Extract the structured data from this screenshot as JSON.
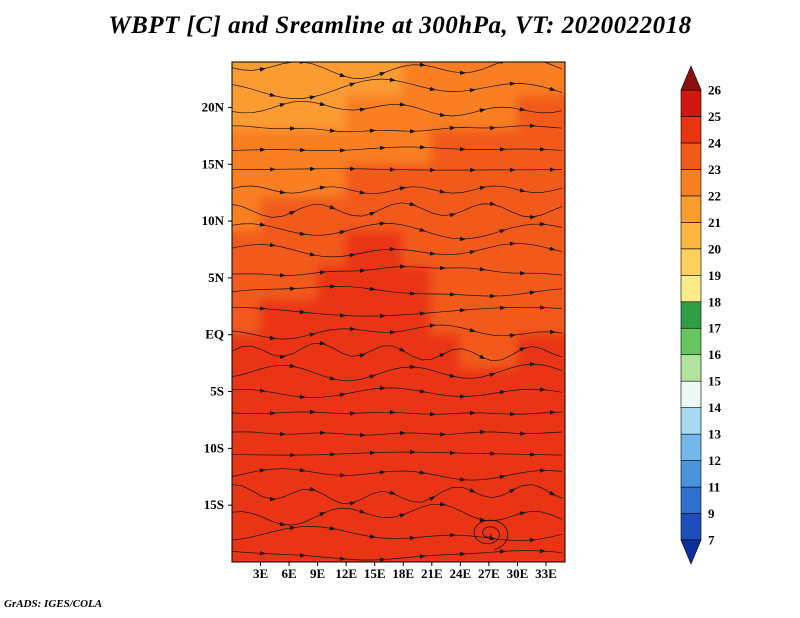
{
  "title": "WBPT [C] and Sreamline at 300hPa, VT: 2020022018",
  "footer": "GrADS: IGES/COLA",
  "chart_data": {
    "type": "heatmap",
    "title": "WBPT [C] and Sreamline at 300hPa, VT: 2020022018",
    "field": "Wet-bulb potential temperature (C) with streamlines at 300 hPa",
    "valid_time": "2020022018",
    "lon_range": [
      0,
      35
    ],
    "lat_range": [
      -20,
      24
    ],
    "x_axis": {
      "ticks": [
        {
          "label": "3E",
          "lon": 3
        },
        {
          "label": "6E",
          "lon": 6
        },
        {
          "label": "9E",
          "lon": 9
        },
        {
          "label": "12E",
          "lon": 12
        },
        {
          "label": "15E",
          "lon": 15
        },
        {
          "label": "18E",
          "lon": 18
        },
        {
          "label": "21E",
          "lon": 21
        },
        {
          "label": "24E",
          "lon": 24
        },
        {
          "label": "27E",
          "lon": 27
        },
        {
          "label": "30E",
          "lon": 30
        },
        {
          "label": "33E",
          "lon": 33
        }
      ]
    },
    "y_axis": {
      "ticks": [
        {
          "label": "20N",
          "lat": 20
        },
        {
          "label": "15N",
          "lat": 15
        },
        {
          "label": "10N",
          "lat": 10
        },
        {
          "label": "5N",
          "lat": 5
        },
        {
          "label": "EQ",
          "lat": 0
        },
        {
          "label": "5S",
          "lat": -5
        },
        {
          "label": "10S",
          "lat": -10
        },
        {
          "label": "15S",
          "lat": -15
        }
      ]
    },
    "colorbar": {
      "levels": [
        7,
        9,
        11,
        12,
        13,
        14,
        15,
        16,
        17,
        18,
        19,
        20,
        21,
        22,
        23,
        24,
        25,
        26
      ],
      "colors": [
        "#0d2f9e",
        "#1d4ebc",
        "#2f6fd0",
        "#4a94de",
        "#74b8ea",
        "#a6d8f2",
        "#eef8f6",
        "#b2e39e",
        "#69c462",
        "#2f9e44",
        "#fdeb8a",
        "#fdd05e",
        "#fdb740",
        "#fb9c30",
        "#f97f22",
        "#f25a1a",
        "#e93412",
        "#cf1810",
        "#8f0f0e"
      ]
    },
    "cyclone_center": {
      "lon": 27,
      "lat": -17.5
    },
    "grid": {
      "lons": [
        1.5,
        4.5,
        7.5,
        10.5,
        13.5,
        16.5,
        19.5,
        22.5,
        25.5,
        28.5,
        31.5,
        34.5
      ],
      "lats": [
        22.5,
        19.5,
        16.5,
        13.5,
        10.5,
        7.5,
        4.5,
        1.5,
        -1.5,
        -4.5,
        -7.5,
        -10.5,
        -13.5,
        -16.5,
        -19.5
      ],
      "values": [
        [
          21.4,
          21.3,
          21.3,
          21.4,
          21.6,
          21.8,
          22.0,
          22.1,
          22.3,
          22.5,
          22.6,
          22.8
        ],
        [
          21.6,
          21.5,
          21.6,
          21.8,
          22.0,
          22.2,
          22.4,
          22.5,
          22.7,
          22.9,
          23.1,
          23.2
        ],
        [
          22.0,
          22.0,
          22.1,
          22.3,
          22.5,
          22.7,
          22.9,
          23.0,
          23.2,
          23.3,
          23.4,
          23.4
        ],
        [
          22.4,
          22.5,
          22.6,
          22.8,
          23.0,
          23.2,
          23.3,
          23.4,
          23.5,
          23.5,
          23.6,
          23.5
        ],
        [
          22.8,
          23.0,
          23.2,
          23.4,
          23.6,
          23.8,
          23.6,
          23.5,
          23.6,
          23.7,
          23.6,
          23.5
        ],
        [
          23.2,
          23.4,
          23.6,
          23.9,
          24.2,
          24.0,
          23.8,
          23.6,
          23.8,
          23.6,
          23.5,
          23.4
        ],
        [
          23.5,
          23.7,
          23.9,
          24.1,
          24.4,
          24.2,
          24.0,
          23.8,
          23.6,
          23.5,
          23.6,
          23.5
        ],
        [
          23.8,
          24.0,
          24.2,
          24.4,
          24.6,
          24.4,
          24.2,
          23.9,
          23.7,
          23.6,
          23.7,
          23.8
        ],
        [
          24.0,
          24.2,
          24.4,
          24.6,
          24.8,
          24.5,
          24.3,
          24.0,
          23.8,
          23.9,
          24.0,
          24.1
        ],
        [
          24.1,
          24.3,
          24.4,
          24.5,
          24.7,
          24.6,
          24.4,
          24.2,
          24.1,
          24.2,
          24.3,
          24.3
        ],
        [
          24.2,
          24.3,
          24.4,
          24.6,
          24.7,
          24.6,
          24.5,
          24.4,
          24.3,
          24.4,
          24.5,
          24.4
        ],
        [
          24.3,
          24.4,
          24.5,
          24.6,
          24.6,
          24.7,
          24.6,
          24.5,
          24.4,
          24.5,
          24.6,
          24.5
        ],
        [
          24.3,
          24.4,
          24.5,
          24.5,
          24.6,
          24.7,
          24.8,
          24.6,
          24.5,
          24.6,
          24.7,
          24.6
        ],
        [
          24.2,
          24.4,
          24.5,
          24.6,
          24.7,
          24.8,
          24.7,
          24.8,
          24.6,
          24.7,
          24.6,
          24.5
        ],
        [
          24.3,
          24.4,
          24.5,
          24.6,
          24.7,
          24.8,
          24.9,
          24.8,
          24.7,
          24.6,
          24.5,
          24.4
        ]
      ]
    }
  }
}
